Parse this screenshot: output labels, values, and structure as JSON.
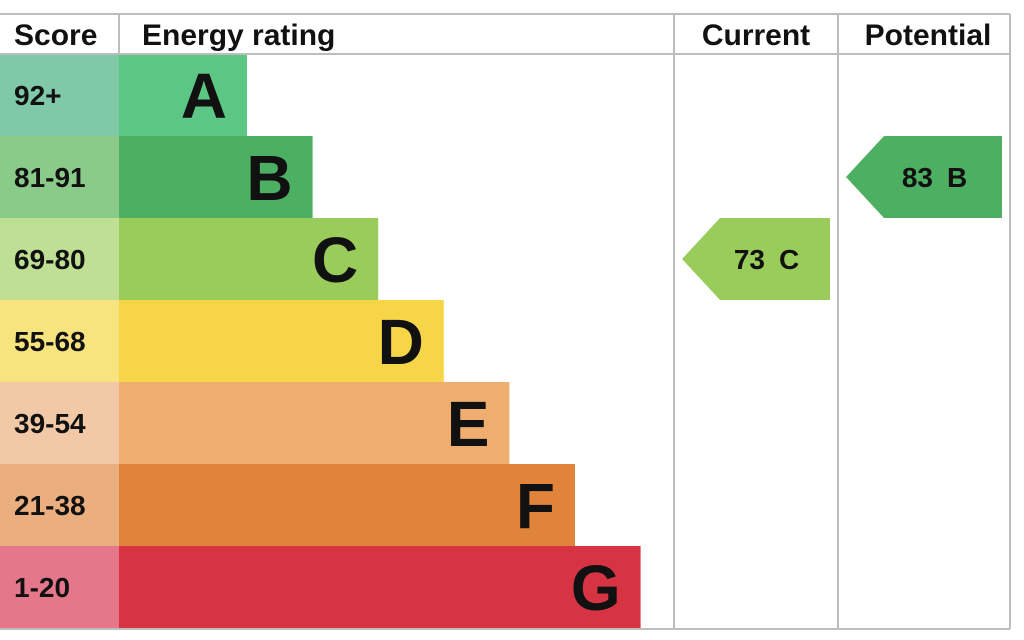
{
  "headers": {
    "score": "Score",
    "energy_rating": "Energy rating",
    "current": "Current",
    "potential": "Potential"
  },
  "chart_data": {
    "type": "bar",
    "title": "",
    "categories": [
      "A",
      "B",
      "C",
      "D",
      "E",
      "F",
      "G"
    ],
    "score_ranges": [
      "92+",
      "81-91",
      "69-80",
      "55-68",
      "39-54",
      "21-38",
      "1-20"
    ],
    "colors": [
      "#5cc784",
      "#4caf62",
      "#99cc5a",
      "#f6d647",
      "#efad6f",
      "#e0843b",
      "#d63443"
    ],
    "score_cell_colors": [
      "#80c9a8",
      "#8bcb8a",
      "#bedf94",
      "#f8e47e",
      "#f2c9a6",
      "#ebae7e",
      "#e4788a"
    ],
    "current": {
      "score": "73",
      "band": "C",
      "color": "#99cc5a"
    },
    "potential": {
      "score": "83",
      "band": "B",
      "color": "#4caf62"
    }
  }
}
